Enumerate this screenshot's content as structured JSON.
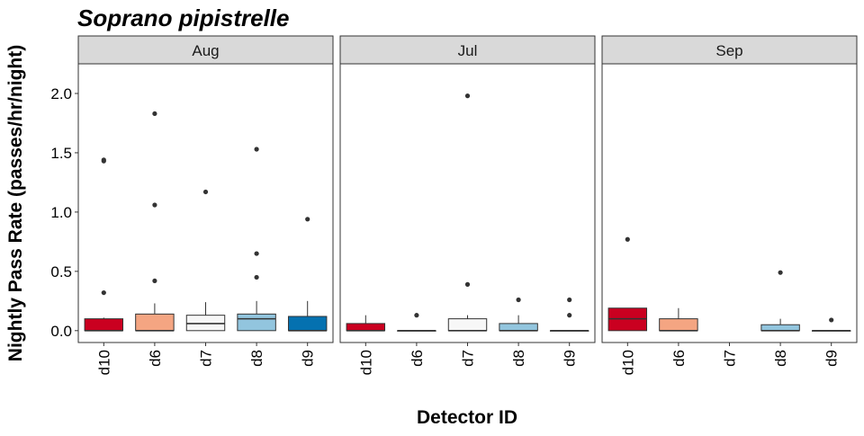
{
  "chart_data": {
    "type": "boxplot",
    "title": "Soprano pipistrelle",
    "xlabel": "Detector ID",
    "ylabel": "Nightly Pass Rate (passes/hr/night)",
    "ylim": [
      -0.1,
      2.25
    ],
    "yticks": [
      "0.0",
      "0.5",
      "1.0",
      "1.5",
      "2.0"
    ],
    "categories": [
      "d10",
      "d6",
      "d7",
      "d8",
      "d9"
    ],
    "colors": {
      "d10": "#ca0020",
      "d6": "#f4a582",
      "d7": "#f7f7f7",
      "d8": "#92c5de",
      "d9": "#0571b0"
    },
    "grid": false,
    "legend": "none",
    "panels": [
      {
        "label": "Aug",
        "boxes": [
          {
            "detector": "d10",
            "min": 0,
            "q1": 0,
            "median": 0,
            "q3": 0.1,
            "max": 0.11,
            "outliers": [
              0.32,
              1.43,
              1.44
            ]
          },
          {
            "detector": "d6",
            "min": 0,
            "q1": 0,
            "median": 0,
            "q3": 0.14,
            "max": 0.23,
            "outliers": [
              0.42,
              1.06,
              1.83
            ]
          },
          {
            "detector": "d7",
            "min": 0,
            "q1": 0,
            "median": 0.06,
            "q3": 0.13,
            "max": 0.24,
            "outliers": [
              1.17
            ]
          },
          {
            "detector": "d8",
            "min": 0,
            "q1": 0,
            "median": 0.1,
            "q3": 0.14,
            "max": 0.25,
            "outliers": [
              0.45,
              0.65,
              1.53
            ]
          },
          {
            "detector": "d9",
            "min": 0,
            "q1": 0,
            "median": 0,
            "q3": 0.12,
            "max": 0.25,
            "outliers": [
              0.94
            ]
          }
        ]
      },
      {
        "label": "Jul",
        "boxes": [
          {
            "detector": "d10",
            "min": 0,
            "q1": 0,
            "median": 0,
            "q3": 0.06,
            "max": 0.13,
            "outliers": []
          },
          {
            "detector": "d6",
            "min": 0,
            "q1": 0,
            "median": 0,
            "q3": 0,
            "max": 0,
            "outliers": [
              0.13
            ]
          },
          {
            "detector": "d7",
            "min": 0,
            "q1": 0,
            "median": 0,
            "q3": 0.1,
            "max": 0.13,
            "outliers": [
              0.39,
              1.98
            ]
          },
          {
            "detector": "d8",
            "min": 0,
            "q1": 0,
            "median": 0,
            "q3": 0.06,
            "max": 0.13,
            "outliers": [
              0.26
            ]
          },
          {
            "detector": "d9",
            "min": 0,
            "q1": 0,
            "median": 0,
            "q3": 0,
            "max": 0,
            "outliers": [
              0.13,
              0.26
            ]
          }
        ]
      },
      {
        "label": "Sep",
        "boxes": [
          {
            "detector": "d10",
            "min": 0,
            "q1": 0,
            "median": 0.1,
            "q3": 0.19,
            "max": 0.19,
            "outliers": [
              0.77
            ]
          },
          {
            "detector": "d6",
            "min": 0,
            "q1": 0,
            "median": 0,
            "q3": 0.1,
            "max": 0.19,
            "outliers": []
          },
          {
            "detector": "d8",
            "min": 0,
            "q1": 0,
            "median": 0,
            "q3": 0.05,
            "max": 0.1,
            "outliers": [
              0.49
            ]
          },
          {
            "detector": "d9",
            "min": 0,
            "q1": 0,
            "median": 0,
            "q3": 0,
            "max": 0,
            "outliers": [
              0.09
            ]
          }
        ]
      }
    ]
  }
}
